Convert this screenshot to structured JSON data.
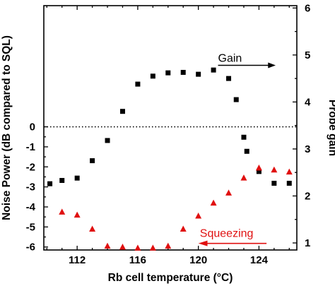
{
  "chart_data": {
    "type": "scatter",
    "title": "",
    "xlabel": "Rb cell temperature (°C)",
    "ylabel_left": "Noise Power (dB compared to SQL)",
    "ylabel_right": "Probe gain",
    "xlim": [
      109.8,
      126.5
    ],
    "ylim_left": [
      -6.15,
      6.05
    ],
    "ylim_right": [
      0.85,
      6.05
    ],
    "x_ticks": [
      112,
      116,
      120,
      124
    ],
    "x_tick_labels": [
      "112",
      "116",
      "120",
      "124"
    ],
    "y_left_ticks": [
      0,
      -1,
      -2,
      -3,
      -4,
      -5,
      -6
    ],
    "y_left_tick_labels": [
      "0",
      "-1",
      "-2",
      "-3",
      "-4",
      "-5",
      "-6"
    ],
    "y_right_ticks": [
      1,
      2,
      3,
      4,
      5,
      6
    ],
    "y_right_tick_labels": [
      "1",
      "2",
      "3",
      "4",
      "5",
      "6"
    ],
    "reference_line": {
      "axis": "left",
      "y": 0,
      "style": "dotted"
    },
    "series": [
      {
        "name": "Gain",
        "axis": "right",
        "marker": "square",
        "color": "#000000",
        "x": [
          110.2,
          111.0,
          112.0,
          113.0,
          114.0,
          115.0,
          116.0,
          117.0,
          118.0,
          119.0,
          120.0,
          121.0,
          122.0,
          122.5,
          123.0,
          123.2,
          124.0,
          125.0,
          126.0
        ],
        "y": [
          2.26,
          2.33,
          2.38,
          2.75,
          3.18,
          3.8,
          4.38,
          4.55,
          4.62,
          4.63,
          4.59,
          4.68,
          4.5,
          4.05,
          3.25,
          2.95,
          2.52,
          2.27,
          2.27
        ]
      },
      {
        "name": "Squeezing",
        "axis": "left",
        "marker": "triangle",
        "color": "#e01010",
        "x": [
          111.0,
          112.0,
          113.0,
          114.0,
          115.0,
          116.0,
          117.0,
          118.0,
          119.0,
          120.0,
          121.0,
          122.0,
          123.0,
          124.0,
          125.0,
          126.0
        ],
        "y": [
          -4.25,
          -4.4,
          -5.1,
          -5.95,
          -6.0,
          -6.05,
          -6.05,
          -5.95,
          -5.1,
          -4.45,
          -3.8,
          -3.3,
          -2.55,
          -2.05,
          -2.15,
          -2.25
        ]
      }
    ],
    "annotations": [
      {
        "text": "Gain",
        "color": "#000000",
        "arrow": "right"
      },
      {
        "text": "Squeezing",
        "color": "#e01010",
        "arrow": "left"
      }
    ]
  }
}
